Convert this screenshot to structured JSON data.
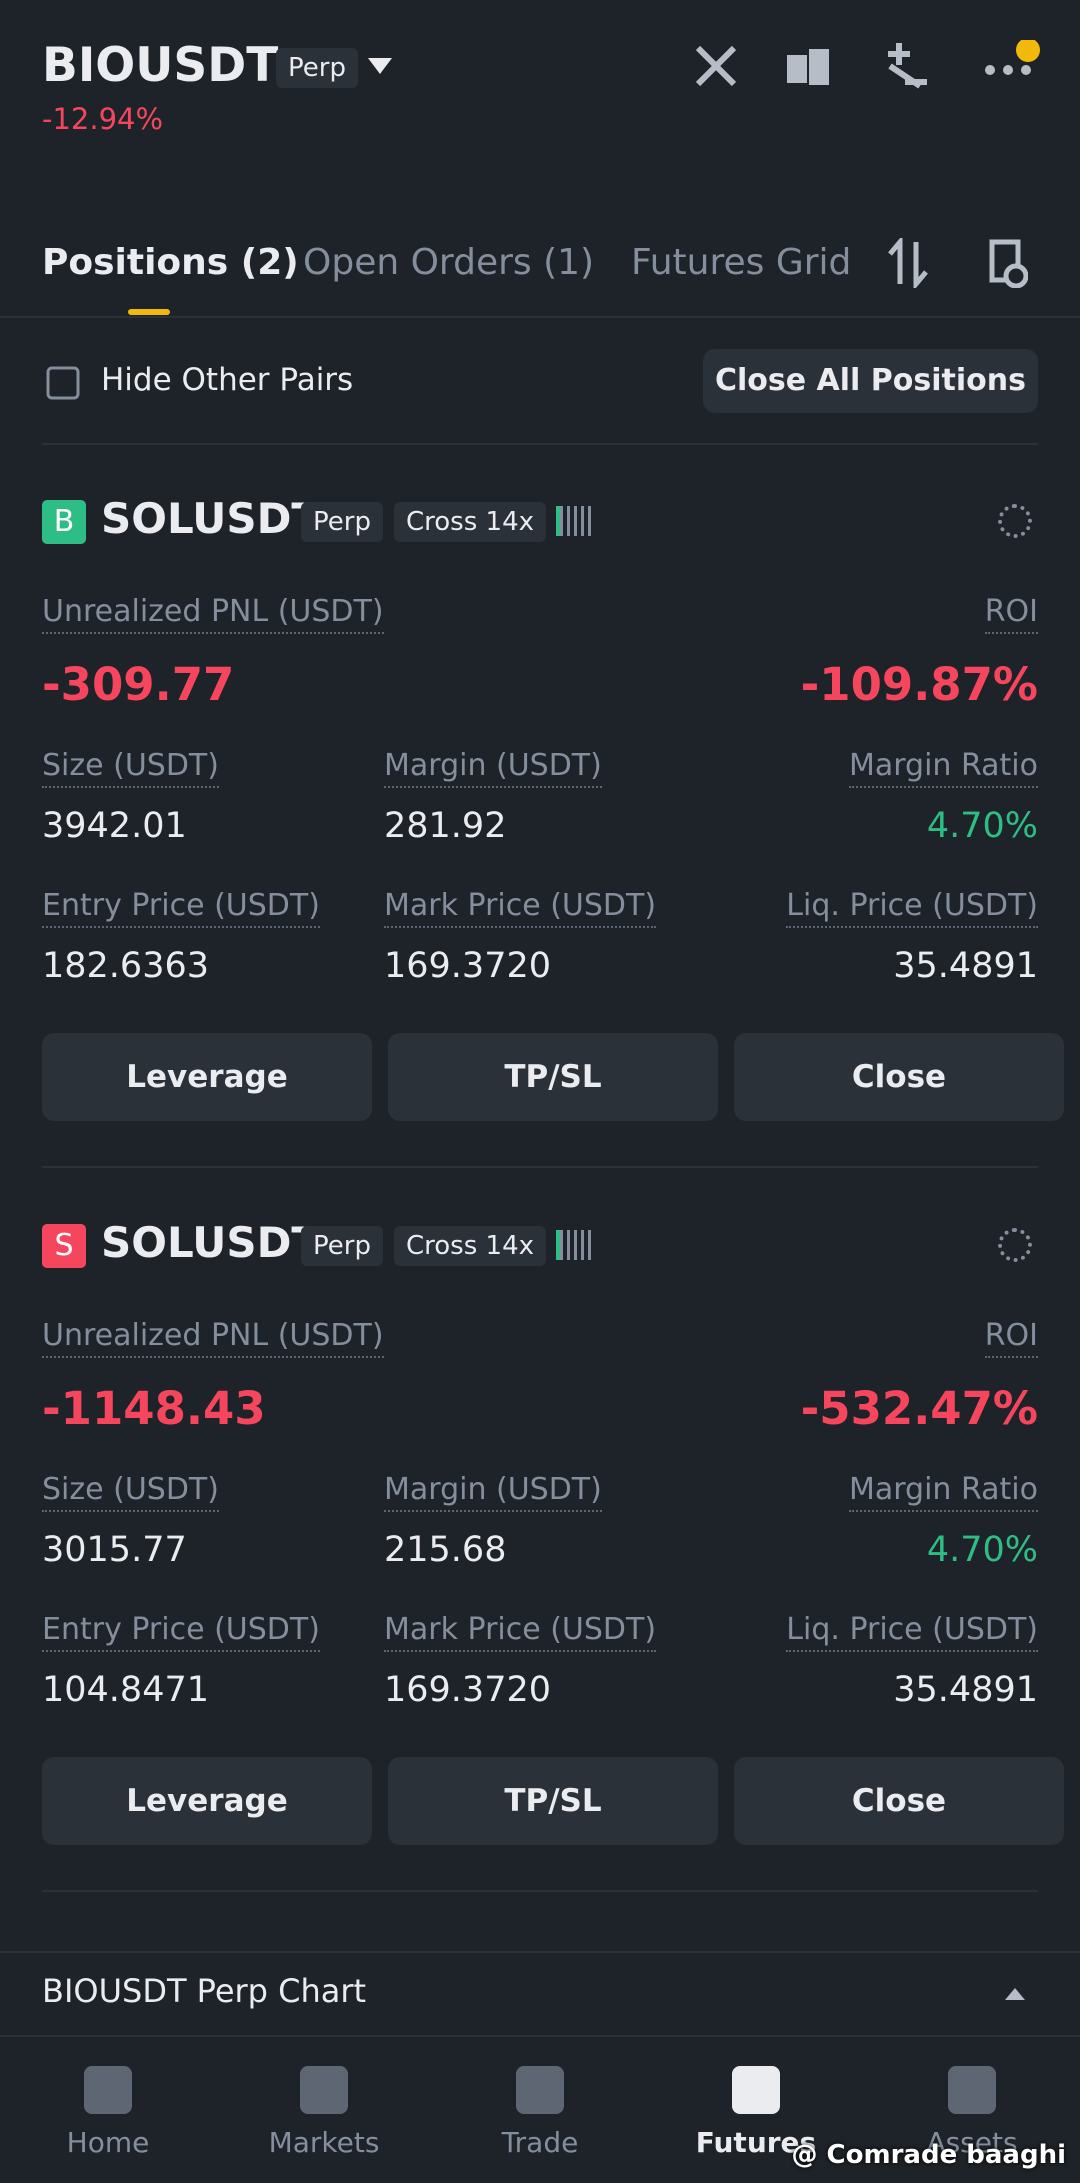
{
  "header": {
    "symbol": "BIOUSDT",
    "badge": "Perp",
    "change": "-12.94%"
  },
  "tabs": [
    "Positions (2)",
    "Open Orders (1)",
    "Futures Grid"
  ],
  "filter": {
    "checkbox_label": "Hide Other Pairs",
    "button": "Close All Positions"
  },
  "positions": [
    {
      "side": "B",
      "symbol": "SOLUSDT",
      "type": "Perp",
      "margin_mode": "Cross 14x",
      "pnl_label": "Unrealized PNL (USDT)",
      "pnl": "-309.77",
      "roi_label": "ROI",
      "roi": "-109.87%",
      "fields": [
        {
          "label": "Size (USDT)",
          "value": "3942.01"
        },
        {
          "label": "Margin (USDT)",
          "value": "281.92"
        },
        {
          "label": "Margin Ratio",
          "value": "4.70%"
        },
        {
          "label": "Entry Price (USDT)",
          "value": "182.6363"
        },
        {
          "label": "Mark Price (USDT)",
          "value": "169.3720"
        },
        {
          "label": "Liq. Price (USDT)",
          "value": "35.4891"
        }
      ],
      "buttons": [
        "Leverage",
        "TP/SL",
        "Close"
      ]
    },
    {
      "side": "S",
      "symbol": "SOLUSDT",
      "type": "Perp",
      "margin_mode": "Cross 14x",
      "pnl_label": "Unrealized PNL (USDT)",
      "pnl": "-1148.43",
      "roi_label": "ROI",
      "roi": "-532.47%",
      "fields": [
        {
          "label": "Size (USDT)",
          "value": "3015.77"
        },
        {
          "label": "Margin (USDT)",
          "value": "215.68"
        },
        {
          "label": "Margin Ratio",
          "value": "4.70%"
        },
        {
          "label": "Entry Price (USDT)",
          "value": "104.8471"
        },
        {
          "label": "Mark Price (USDT)",
          "value": "169.3720"
        },
        {
          "label": "Liq. Price (USDT)",
          "value": "35.4891"
        }
      ],
      "buttons": [
        "Leverage",
        "TP/SL",
        "Close"
      ]
    }
  ],
  "chart_bar": "BIOUSDT Perp Chart",
  "nav": [
    "Home",
    "Markets",
    "Trade",
    "Futures",
    "Assets"
  ],
  "watermark": "@ Comrade baaghi"
}
